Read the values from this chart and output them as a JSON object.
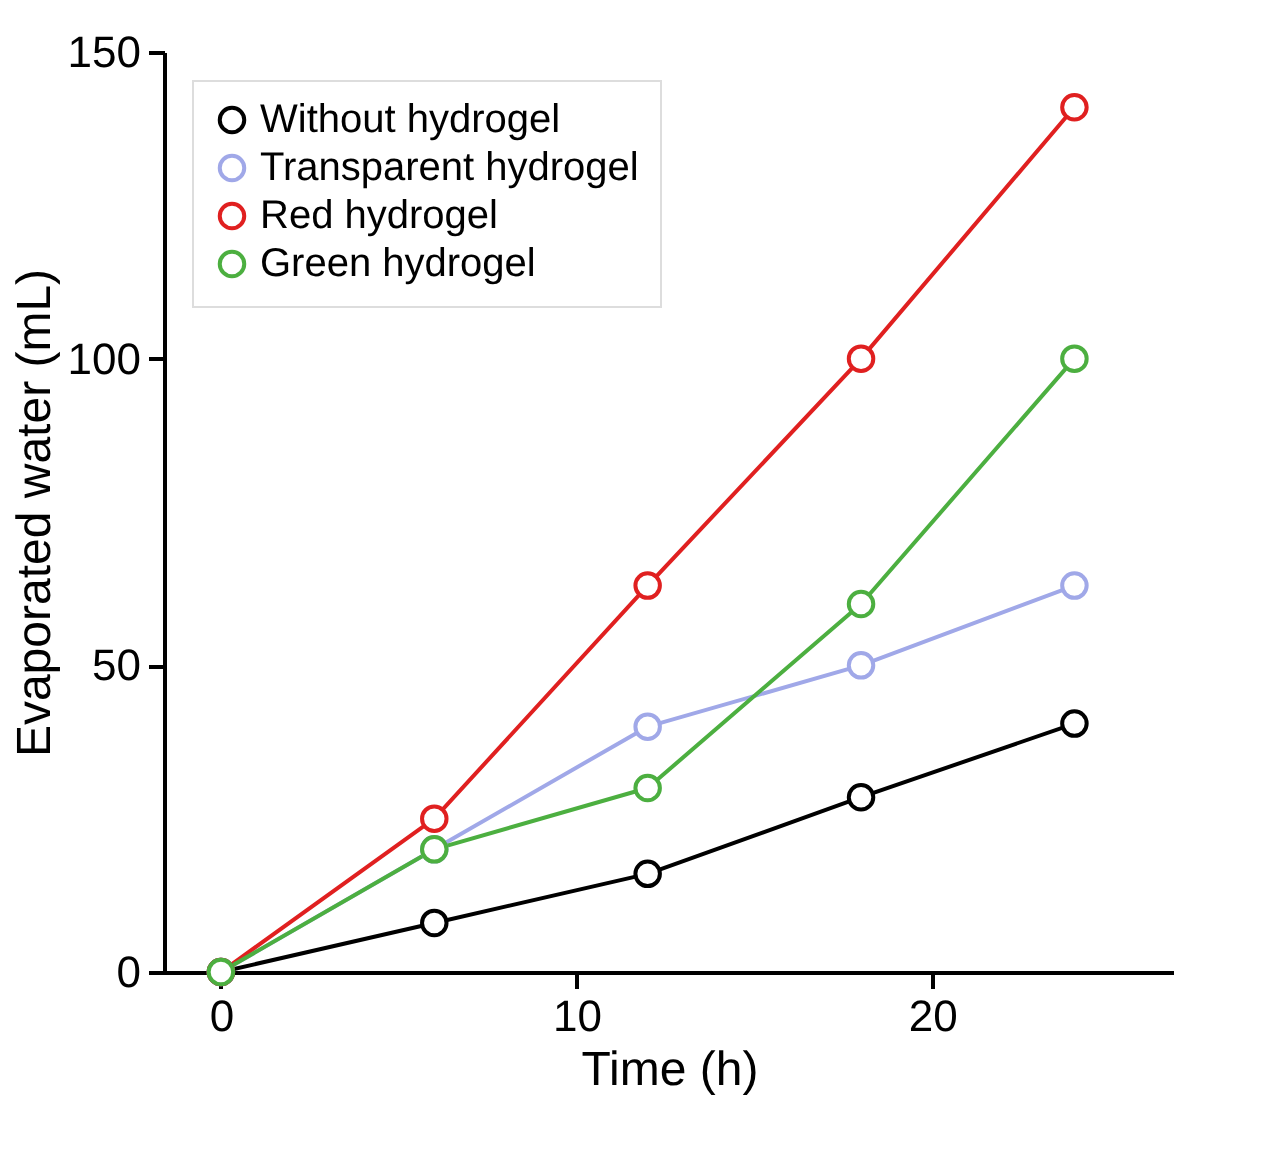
{
  "chart_data": {
    "type": "line",
    "xlabel": "Time (h)",
    "ylabel": "Evaporated water (mL)",
    "x": [
      0,
      6,
      12,
      18,
      24
    ],
    "series": [
      {
        "name": "Without hydrogel",
        "color": "#000000",
        "values": [
          0,
          8,
          16,
          28.5,
          40.5
        ]
      },
      {
        "name": "Transparent hydrogel",
        "color": "#a0a8e8",
        "values": [
          0,
          20,
          40,
          50,
          63
        ]
      },
      {
        "name": "Red hydrogel",
        "color": "#e02020",
        "values": [
          0,
          25,
          63,
          100,
          141
        ]
      },
      {
        "name": "Green hydrogel",
        "color": "#4caf40",
        "values": [
          0,
          20,
          30,
          60,
          100
        ]
      }
    ],
    "xlim": [
      -1.6,
      26.8
    ],
    "xticks": [
      0,
      10,
      20
    ],
    "ylim": [
      0,
      150
    ],
    "yticks": [
      0,
      50,
      100,
      150
    ],
    "marker": "circle",
    "line_style": "solid",
    "legend": "top left",
    "grid": false
  }
}
